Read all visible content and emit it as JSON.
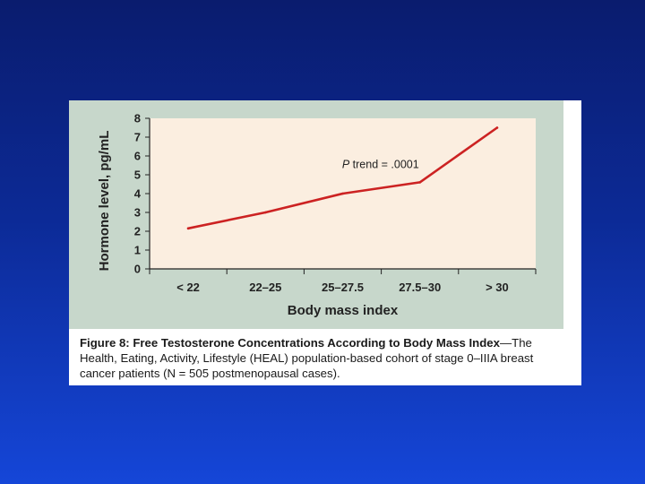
{
  "chart_data": {
    "type": "line",
    "categories": [
      "< 22",
      "22–25",
      "25–27.5",
      "27.5–30",
      "> 30"
    ],
    "series": [
      {
        "values": [
          2.15,
          3.0,
          4.0,
          4.6,
          7.5
        ]
      }
    ],
    "xlabel": "Body mass index",
    "ylabel": "Hormone level, pg/mL",
    "ylim": [
      0,
      8
    ],
    "yticks": [
      0,
      1,
      2,
      3,
      4,
      5,
      6,
      7,
      8
    ],
    "annotation": {
      "prefix": "P",
      "text": " trend = .0001",
      "x_category": 3,
      "y": 5.35
    },
    "line_color": "#cc2222",
    "plot_background": "#fbeee0",
    "grid": false
  },
  "caption": {
    "title": "Figure 8: Free Testosterone Concentrations According to Body Mass Index",
    "body": "—The Health, Eating, Activity, Lifestyle (HEAL) population-based cohort of stage 0–IIIA breast cancer patients (N = 505 postmenopausal cases)."
  }
}
